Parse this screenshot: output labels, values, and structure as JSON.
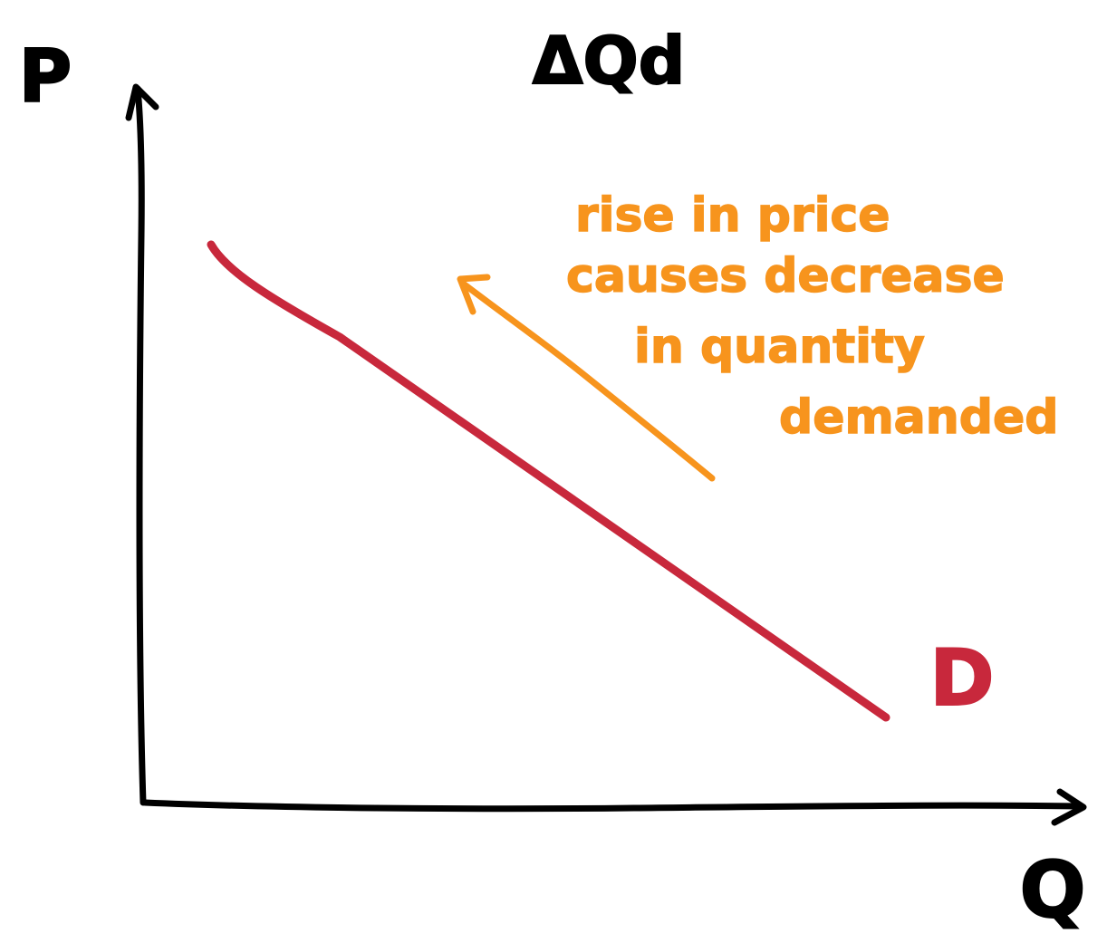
{
  "title": "ΔQd",
  "axes": {
    "y_label": "P",
    "x_label": "Q"
  },
  "curve": {
    "label": "D",
    "color": "#c8283c"
  },
  "annotation": {
    "lines": [
      "rise in price",
      "causes decrease",
      "in quantity",
      "demanded"
    ],
    "color": "#f7941d",
    "arrow_direction": "up-left"
  },
  "ink_color": "#000000"
}
